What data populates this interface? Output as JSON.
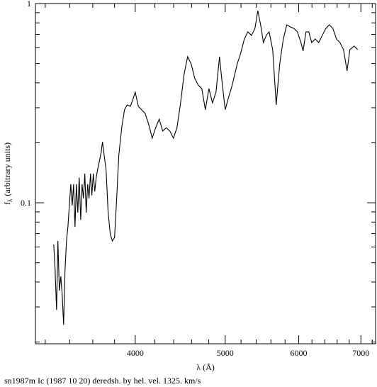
{
  "chart_data": {
    "type": "line",
    "title": "sn1987m Ic (1987 10 20) deredsh. by hel. vel.  1325. km/s",
    "xlabel": "λ (Å)",
    "ylabel_symbol": "f",
    "ylabel_subscript": "λ",
    "ylabel": "(arbitrary units)",
    "xscale": "log",
    "yscale": "log",
    "xlim": [
      3123,
      7260
    ],
    "ylim": [
      0.0196,
      1
    ],
    "xticks": [
      4000,
      5000,
      6000,
      7000
    ],
    "yticks": [
      0.1,
      1
    ],
    "xticks_minor": [
      3200,
      3400,
      3600,
      3800,
      4200,
      4400,
      4600,
      4800,
      5200,
      5400,
      5600,
      5800,
      6200,
      6400,
      6600,
      6800,
      7200
    ],
    "yticks_minor": [
      0.02,
      0.03,
      0.04,
      0.05,
      0.06,
      0.07,
      0.08,
      0.09,
      0.2,
      0.3,
      0.4,
      0.5,
      0.6,
      0.7,
      0.8,
      0.9
    ],
    "series": [
      {
        "color": "#000000",
        "x": [
          3268,
          3279,
          3291,
          3302,
          3314,
          3326,
          3337,
          3349,
          3361,
          3373,
          3385,
          3397,
          3409,
          3421,
          3433,
          3445,
          3457,
          3469,
          3481,
          3494,
          3506,
          3518,
          3530,
          3542,
          3555,
          3567,
          3580,
          3592,
          3605,
          3618,
          3631,
          3643,
          3656,
          3676,
          3688,
          3700,
          3721,
          3740,
          3760,
          3779,
          3800,
          3820,
          3840,
          3868,
          3895,
          3921,
          3952,
          3978,
          4000,
          4031,
          4063,
          4099,
          4135,
          4172,
          4208,
          4245,
          4282,
          4320,
          4359,
          4397,
          4436,
          4476,
          4515,
          4555,
          4595,
          4635,
          4676,
          4718,
          4760,
          4802,
          4845,
          4887,
          4930,
          4965,
          5000,
          5035,
          5088,
          5151,
          5196,
          5243,
          5289,
          5336,
          5383,
          5421,
          5459,
          5497,
          5536,
          5575,
          5625,
          5674,
          5724,
          5775,
          5826,
          5877,
          5929,
          5980,
          6033,
          6065,
          6109,
          6152,
          6196,
          6251,
          6305,
          6361,
          6417,
          6473,
          6531,
          6588,
          6646,
          6705,
          6764,
          6811,
          6884,
          6945
        ],
        "values": [
          0.0617,
          0.0463,
          0.029,
          0.0643,
          0.0362,
          0.0427,
          0.0348,
          0.0244,
          0.0463,
          0.0643,
          0.0757,
          0.0968,
          0.124,
          0.0968,
          0.124,
          0.0757,
          0.124,
          0.0892,
          0.134,
          0.0821,
          0.124,
          0.105,
          0.14,
          0.0892,
          0.124,
          0.105,
          0.14,
          0.109,
          0.14,
          0.114,
          0.134,
          0.146,
          0.158,
          0.179,
          0.202,
          0.179,
          0.146,
          0.0892,
          0.0697,
          0.0643,
          0.0669,
          0.105,
          0.172,
          0.238,
          0.293,
          0.31,
          0.305,
          0.331,
          0.359,
          0.305,
          0.293,
          0.281,
          0.248,
          0.211,
          0.238,
          0.263,
          0.229,
          0.238,
          0.229,
          0.211,
          0.238,
          0.317,
          0.441,
          0.541,
          0.498,
          0.423,
          0.39,
          0.374,
          0.293,
          0.374,
          0.317,
          0.359,
          0.541,
          0.39,
          0.293,
          0.331,
          0.39,
          0.498,
          0.563,
          0.664,
          0.721,
          0.692,
          0.75,
          0.921,
          0.782,
          0.637,
          0.692,
          0.721,
          0.587,
          0.31,
          0.498,
          0.664,
          0.782,
          0.763,
          0.75,
          0.721,
          0.637,
          0.578,
          0.721,
          0.721,
          0.637,
          0.664,
          0.637,
          0.692,
          0.75,
          0.782,
          0.75,
          0.664,
          0.637,
          0.587,
          0.459,
          0.587,
          0.612,
          0.587
        ]
      }
    ]
  }
}
